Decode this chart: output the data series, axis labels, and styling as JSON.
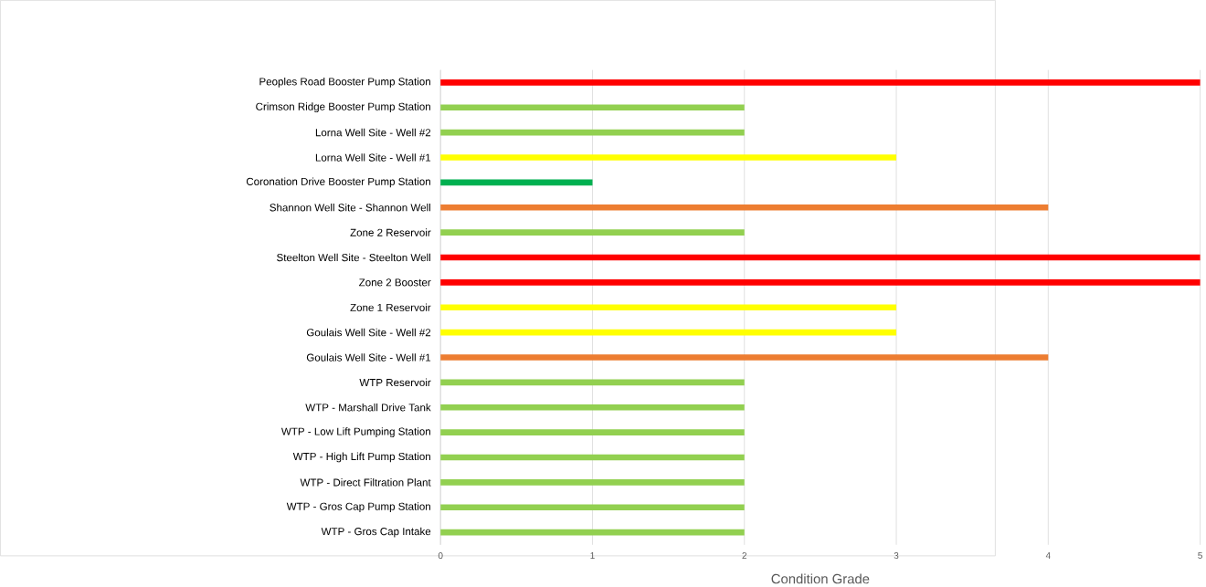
{
  "chart_data": {
    "type": "bar",
    "orientation": "horizontal",
    "xlabel": "Condition Grade",
    "categories": [
      "Peoples Road Booster Pump Station",
      "Crimson Ridge Booster Pump Station",
      "Lorna Well Site - Well #2",
      "Lorna Well Site - Well #1",
      "Coronation Drive Booster Pump Station",
      "Shannon Well Site - Shannon Well",
      "Zone 2 Reservoir",
      "Steelton Well Site - Steelton Well",
      "Zone 2 Booster",
      "Zone 1 Reservoir",
      "Goulais Well Site - Well #2",
      "Goulais Well Site - Well #1",
      "WTP Reservoir",
      "WTP - Marshall Drive Tank",
      "WTP - Low Lift Pumping Station",
      "WTP - High Lift Pump Station",
      "WTP - Direct Filtration Plant",
      "WTP - Gros Cap Pump Station",
      "WTP - Gros Cap Intake"
    ],
    "values": [
      5,
      2,
      2,
      3,
      1,
      4,
      2,
      5,
      5,
      3,
      3,
      4,
      2,
      2,
      2,
      2,
      2,
      2,
      2
    ],
    "colors": [
      "#ff0000",
      "#92d050",
      "#92d050",
      "#ffff00",
      "#00b050",
      "#ed7d31",
      "#92d050",
      "#ff0000",
      "#ff0000",
      "#ffff00",
      "#ffff00",
      "#ed7d31",
      "#92d050",
      "#92d050",
      "#92d050",
      "#92d050",
      "#92d050",
      "#92d050",
      "#92d050"
    ],
    "xlim": [
      0,
      5
    ],
    "xticks": [
      0,
      1,
      2,
      3,
      4,
      5
    ],
    "grid": "x"
  }
}
